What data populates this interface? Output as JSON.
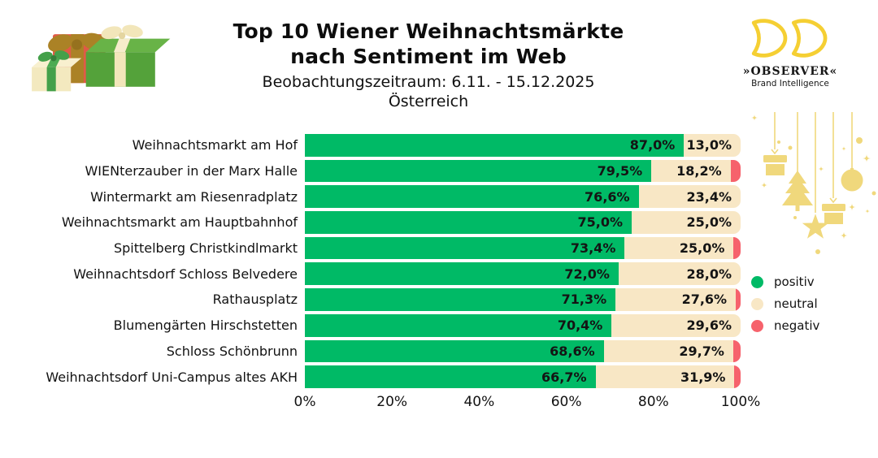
{
  "header": {
    "title_line1": "Top 10 Wiener Weihnachtsmärkte",
    "title_line2": "nach Sentiment im Web",
    "subtitle": "Beobachtungszeitraum: 6.11. - 15.12.2025",
    "region": "Österreich"
  },
  "branding": {
    "logo_text": "»OBSERVER«",
    "logo_subtext": "Brand Intelligence",
    "logo_color": "#f5cf33"
  },
  "decor": {
    "gold": "#f0d87c"
  },
  "chart_data": {
    "type": "bar",
    "orientation": "horizontal",
    "stacked": true,
    "title": "Top 10 Wiener Weihnachtsmärkte nach Sentiment im Web",
    "subtitle": "Beobachtungszeitraum: 6.11. - 15.12.2025 Österreich",
    "xlabel": "",
    "ylabel": "",
    "xlim": [
      0,
      100
    ],
    "grid": false,
    "x_ticks": [
      "0%",
      "20%",
      "40%",
      "60%",
      "80%",
      "100%"
    ],
    "legend_position": "right",
    "legend": [
      {
        "name": "positiv",
        "color": "#00ba66"
      },
      {
        "name": "neutral",
        "color": "#f8e7c5"
      },
      {
        "name": "negativ",
        "color": "#f6626c"
      }
    ],
    "categories": [
      "Weihnachtsmarkt am Hof",
      "WIENterzauber in der Marx Halle",
      "Wintermarkt am Riesenradplatz",
      "Weihnachtsmarkt am Hauptbahnhof",
      "Spittelberg Christkindlmarkt",
      "Weihnachtsdorf Schloss Belvedere",
      "Rathausplatz",
      "Blumengärten Hirschstetten",
      "Schloss Schönbrunn",
      "Weihnachtsdorf Uni-Campus altes AKH"
    ],
    "series": [
      {
        "name": "positiv",
        "values": [
          87.0,
          79.5,
          76.6,
          75.0,
          73.4,
          72.0,
          71.3,
          70.4,
          68.6,
          66.7
        ],
        "labels": [
          "87,0%",
          "79,5%",
          "76,6%",
          "75,0%",
          "73,4%",
          "72,0%",
          "71,3%",
          "70,4%",
          "68,6%",
          "66,7%"
        ]
      },
      {
        "name": "neutral",
        "values": [
          13.0,
          18.2,
          23.4,
          25.0,
          25.0,
          28.0,
          27.6,
          29.6,
          29.7,
          31.9
        ],
        "labels": [
          "13,0%",
          "18,2%",
          "23,4%",
          "25,0%",
          "25,0%",
          "28,0%",
          "27,6%",
          "29,6%",
          "29,7%",
          "31,9%"
        ]
      },
      {
        "name": "negativ",
        "values": [
          0.0,
          2.3,
          0.0,
          0.0,
          1.6,
          0.0,
          1.1,
          0.0,
          1.7,
          1.4
        ]
      }
    ]
  }
}
